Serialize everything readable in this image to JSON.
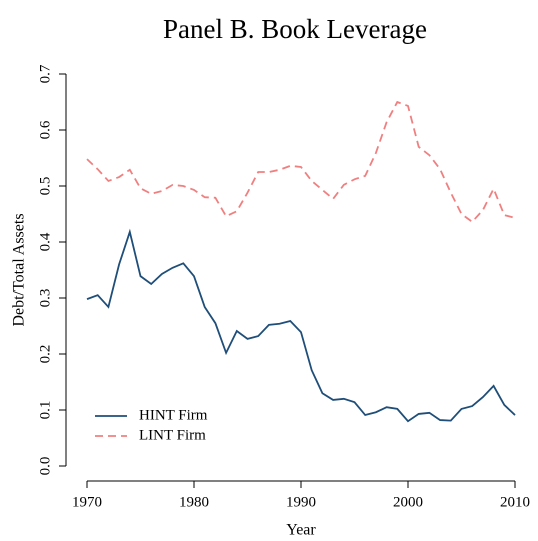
{
  "chart_data": {
    "type": "line",
    "title": "Panel B. Book Leverage",
    "xlabel": "Year",
    "ylabel": "Debt/Total Assets",
    "x": [
      1970,
      1971,
      1972,
      1973,
      1974,
      1975,
      1976,
      1977,
      1978,
      1979,
      1980,
      1981,
      1982,
      1983,
      1984,
      1985,
      1986,
      1987,
      1988,
      1989,
      1990,
      1991,
      1992,
      1993,
      1994,
      1995,
      1996,
      1997,
      1998,
      1999,
      2000,
      2001,
      2002,
      2003,
      2004,
      2005,
      2006,
      2007,
      2008,
      2009,
      2010
    ],
    "series": [
      {
        "name": "HINT Firm",
        "color": "#1f4e79",
        "linestyle": "solid",
        "values": [
          0.298,
          0.305,
          0.284,
          0.36,
          0.418,
          0.339,
          0.325,
          0.343,
          0.354,
          0.362,
          0.339,
          0.284,
          0.255,
          0.202,
          0.241,
          0.227,
          0.232,
          0.252,
          0.254,
          0.259,
          0.239,
          0.171,
          0.13,
          0.118,
          0.12,
          0.114,
          0.091,
          0.096,
          0.105,
          0.102,
          0.08,
          0.093,
          0.095,
          0.082,
          0.081,
          0.102,
          0.107,
          0.123,
          0.143,
          0.109,
          0.091
        ]
      },
      {
        "name": "LINT Firm",
        "color": "#f08080",
        "linestyle": "dashed",
        "values": [
          0.548,
          0.53,
          0.509,
          0.516,
          0.529,
          0.496,
          0.486,
          0.491,
          0.502,
          0.5,
          0.493,
          0.48,
          0.479,
          0.446,
          0.455,
          0.488,
          0.525,
          0.525,
          0.529,
          0.536,
          0.534,
          0.509,
          0.493,
          0.477,
          0.502,
          0.512,
          0.518,
          0.559,
          0.614,
          0.65,
          0.643,
          0.57,
          0.555,
          0.53,
          0.488,
          0.45,
          0.436,
          0.457,
          0.495,
          0.448,
          0.443
        ]
      }
    ],
    "xlim": [
      1970,
      2010
    ],
    "xticks": [
      1970,
      1980,
      1990,
      2000,
      2010
    ],
    "ylim": [
      0,
      0.7
    ],
    "yticks": [
      {
        "value": 0,
        "label": "0.0"
      },
      0.1,
      0.2,
      0.3,
      0.4,
      0.5,
      0.6,
      0.7
    ],
    "legend": "bottom-left"
  }
}
